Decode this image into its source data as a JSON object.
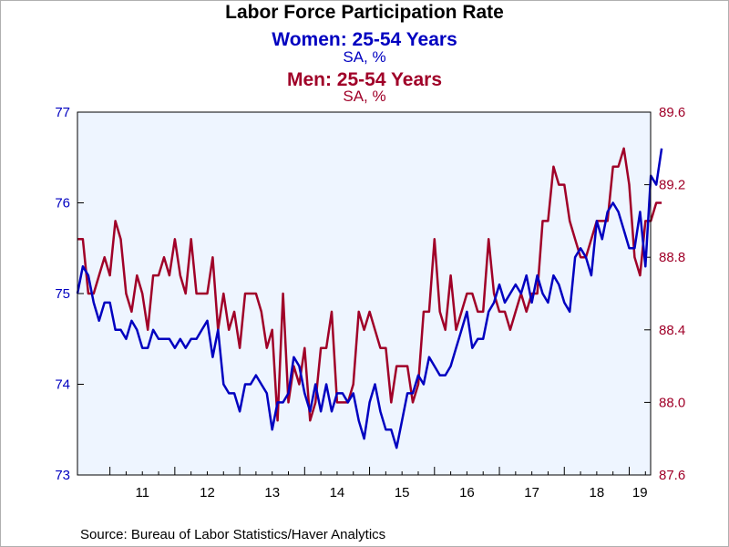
{
  "colors": {
    "women": "#0000c0",
    "men": "#a00028",
    "plot_bg": "#eef5ff"
  },
  "chart_data": {
    "type": "line",
    "title": "Labor Force Participation Rate",
    "xlabel": "",
    "x_ticks": [
      "11",
      "12",
      "13",
      "14",
      "15",
      "16",
      "17",
      "18",
      "19"
    ],
    "x_range": [
      2010.5,
      2019.33
    ],
    "grid": false,
    "series": [
      {
        "name": "Women: 25-54 Years",
        "subtitle": "SA, %",
        "axis": "left",
        "ylim": [
          73,
          77
        ],
        "yticks": [
          "73",
          "74",
          "75",
          "76",
          "77"
        ],
        "start": "2010-07",
        "frequency": "monthly",
        "values": [
          75.0,
          75.3,
          75.2,
          74.9,
          74.7,
          74.9,
          74.9,
          74.6,
          74.6,
          74.5,
          74.7,
          74.6,
          74.4,
          74.4,
          74.6,
          74.5,
          74.5,
          74.5,
          74.4,
          74.5,
          74.4,
          74.5,
          74.5,
          74.6,
          74.7,
          74.3,
          74.6,
          74.0,
          73.9,
          73.9,
          73.7,
          74.0,
          74.0,
          74.1,
          74.0,
          73.9,
          73.5,
          73.8,
          73.8,
          73.9,
          74.3,
          74.2,
          73.9,
          73.7,
          74.0,
          73.7,
          74.0,
          73.7,
          73.9,
          73.9,
          73.8,
          73.9,
          73.6,
          73.4,
          73.8,
          74.0,
          73.7,
          73.5,
          73.5,
          73.3,
          73.6,
          73.9,
          73.9,
          74.1,
          74.0,
          74.3,
          74.2,
          74.1,
          74.1,
          74.2,
          74.4,
          74.6,
          74.8,
          74.4,
          74.5,
          74.5,
          74.8,
          74.9,
          75.1,
          74.9,
          75.0,
          75.1,
          75.0,
          75.2,
          74.9,
          75.2,
          75.0,
          74.9,
          75.2,
          75.1,
          74.9,
          74.8,
          75.4,
          75.5,
          75.4,
          75.2,
          75.8,
          75.6,
          75.9,
          76.0,
          75.9,
          75.7,
          75.5,
          75.5,
          75.9,
          75.3,
          76.3,
          76.2,
          76.6
        ]
      },
      {
        "name": "Men: 25-54 Years",
        "subtitle": "SA, %",
        "axis": "right",
        "ylim": [
          87.6,
          89.6
        ],
        "yticks": [
          "87.6",
          "88.0",
          "88.4",
          "88.8",
          "89.2",
          "89.6"
        ],
        "start": "2010-07",
        "frequency": "monthly",
        "values": [
          88.9,
          88.9,
          88.6,
          88.6,
          88.7,
          88.8,
          88.7,
          89.0,
          88.9,
          88.6,
          88.5,
          88.7,
          88.6,
          88.4,
          88.7,
          88.7,
          88.8,
          88.7,
          88.9,
          88.7,
          88.6,
          88.9,
          88.6,
          88.6,
          88.6,
          88.8,
          88.4,
          88.6,
          88.4,
          88.5,
          88.3,
          88.6,
          88.6,
          88.6,
          88.5,
          88.3,
          88.4,
          87.9,
          88.6,
          88.0,
          88.2,
          88.1,
          88.3,
          87.9,
          88.0,
          88.3,
          88.3,
          88.5,
          88.0,
          88.0,
          88.0,
          88.1,
          88.5,
          88.4,
          88.5,
          88.4,
          88.3,
          88.3,
          88.0,
          88.2,
          88.2,
          88.2,
          88.0,
          88.1,
          88.5,
          88.5,
          88.9,
          88.5,
          88.4,
          88.7,
          88.4,
          88.5,
          88.6,
          88.6,
          88.5,
          88.5,
          88.9,
          88.6,
          88.5,
          88.5,
          88.4,
          88.5,
          88.6,
          88.5,
          88.6,
          88.6,
          89.0,
          89.0,
          89.3,
          89.2,
          89.2,
          89.0,
          88.9,
          88.8,
          88.8,
          88.9,
          89.0,
          89.0,
          89.0,
          89.3,
          89.3,
          89.4,
          89.2,
          88.8,
          88.7,
          89.0,
          89.0,
          89.1,
          89.1
        ]
      }
    ],
    "source": "Source:  Bureau of Labor Statistics/Haver Analytics"
  }
}
